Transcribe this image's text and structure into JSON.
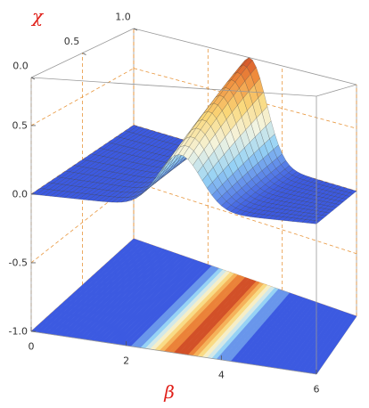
{
  "chart_data": {
    "type": "surface3d",
    "xlabel": "β",
    "ylabel": "χ",
    "xlim": [
      0,
      6
    ],
    "xticks": [
      0,
      2,
      4,
      6
    ],
    "ylim": [
      0,
      1
    ],
    "yticks": [
      {
        "value": 0,
        "label": "0.0"
      },
      {
        "value": 0.5,
        "label": "0.5"
      },
      {
        "value": 1,
        "label": "1.0"
      }
    ],
    "zlim": [
      -1,
      0.85
    ],
    "zticks": [
      {
        "value": -1,
        "label": "-1.0"
      },
      {
        "value": -0.5,
        "label": "-0.5"
      },
      {
        "value": 0,
        "label": "0.0"
      },
      {
        "value": 0.5,
        "label": "0.5"
      }
    ],
    "grid": true
  }
}
